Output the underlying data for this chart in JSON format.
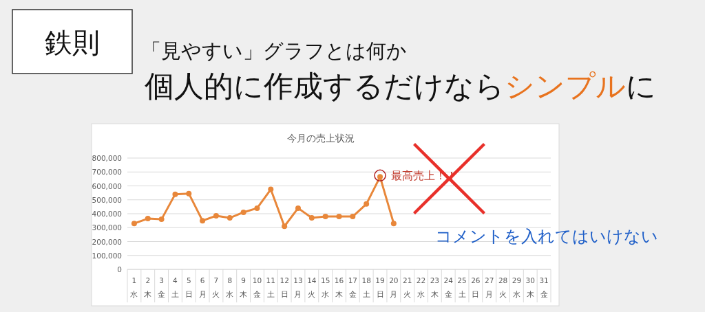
{
  "chart_data": {
    "type": "line",
    "title": "今月の売上状況",
    "categories": [
      "1\n水",
      "2\n木",
      "3\n金",
      "4\n土",
      "5\n日",
      "6\n月",
      "7\n火",
      "8\n水",
      "9\n木",
      "10\n金",
      "11\n土",
      "12\n日",
      "13\n月",
      "14\n火",
      "15\n水",
      "16\n木",
      "17\n金",
      "18\n土",
      "19\n日",
      "20\n月",
      "21\n火",
      "22\n水",
      "23\n木",
      "24\n金",
      "25\n土",
      "26\n日",
      "27\n月",
      "28\n火",
      "29\n水",
      "30\n木",
      "31\n金"
    ],
    "series": [
      {
        "color": "#e8873a",
        "values": [
          330000,
          365000,
          360000,
          540000,
          545000,
          350000,
          385000,
          370000,
          410000,
          440000,
          575000,
          310000,
          440000,
          370000,
          380000,
          380000,
          380000,
          470000,
          665000,
          330000,
          null,
          null,
          null,
          null,
          null,
          null,
          null,
          null,
          null,
          null,
          null
        ]
      }
    ],
    "ylim": [
      0,
      800000
    ],
    "yticks": [
      {
        "value": 0,
        "label": "0"
      },
      {
        "value": 100000,
        "label": "100,000"
      },
      {
        "value": 200000,
        "label": "200,000"
      },
      {
        "value": 300000,
        "label": "300,000"
      },
      {
        "value": 400000,
        "label": "400,000"
      },
      {
        "value": 500000,
        "label": "500,000"
      },
      {
        "value": 600000,
        "label": "600,000"
      },
      {
        "value": 700000,
        "label": "700,000"
      },
      {
        "value": 800000,
        "label": "800,000"
      }
    ],
    "grid": "y",
    "marker": "circle",
    "line_style": "solid",
    "annotations": [
      "鉄則",
      "「見やすい」グラフとは何か",
      "個人的に作成するだけなら",
      "シンプル",
      "に",
      {
        "text": "最高売上！！",
        "x": "19\n日",
        "y": 665000
      },
      "コメントを入れてはいけない"
    ]
  }
}
